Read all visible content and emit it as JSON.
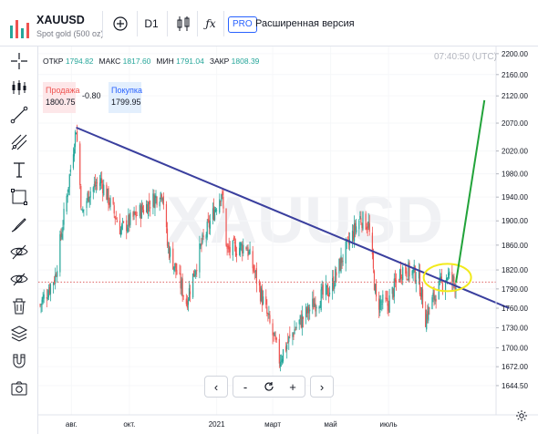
{
  "symbol": {
    "ticker": "XAUUSD",
    "description": "Spot gold (500 oz)",
    "watermark": "XAUUSD"
  },
  "toolbar": {
    "add_icon": "plus-circle-icon",
    "interval": "D1",
    "chart_type_icon": "candles-icon",
    "indicators_icon": "fx-icon",
    "pro_badge": "PRO",
    "extended_label": "Расширенная версия"
  },
  "left_tools": [
    "crosshair-icon",
    "candle-settings-icon",
    "trend-line-icon",
    "pitchfork-icon",
    "text-icon",
    "rectangle-icon",
    "brush-icon",
    "eye-off-icon",
    "magnet-icon",
    "trash-icon",
    "layers-icon",
    "magnet-u-icon",
    "screenshot-icon"
  ],
  "ohlc": {
    "open_label": "ОТКР",
    "open": "1794.82",
    "high_label": "МАКС",
    "high": "1817.60",
    "low_label": "МИН",
    "low": "1791.04",
    "close_label": "ЗАКР",
    "close": "1808.39"
  },
  "time": "07:40:50 (UTC)",
  "trade": {
    "sell_label": "Продажа",
    "sell_price": "1800.75",
    "spread": "-0.80",
    "buy_label": "Покупка",
    "buy_price": "1799.95"
  },
  "colors": {
    "up": "#26a69a",
    "down": "#ef5350",
    "trendline": "#3a3f9e",
    "projection": "#22a33a",
    "highlight_ellipse": "#f2ea1b",
    "hline": "#e06666"
  },
  "navigation": {
    "prev": "‹",
    "zoom_out": "-",
    "reset_icon": "reset-icon",
    "zoom_in": "+",
    "next": "›"
  },
  "chart_data": {
    "type": "candlestick",
    "title": "",
    "price_axis": {
      "ticks": [
        "2200.00",
        "2160.00",
        "2120.00",
        "2070.00",
        "2020.00",
        "1980.00",
        "1940.00",
        "1900.00",
        "1860.00",
        "1820.00",
        "1790.00",
        "1760.00",
        "1730.00",
        "1700.00",
        "1672.00",
        "1644.50"
      ],
      "ylim": [
        1630,
        2205
      ],
      "scale": "log"
    },
    "time_axis": {
      "ticks": [
        "авг.",
        "окт.",
        "2021",
        "март",
        "май",
        "июль"
      ]
    },
    "date_range": [
      "2020-06-29",
      "2021-09-10"
    ],
    "approx_close_path": [
      {
        "t": "2020-06-29",
        "p": 1765
      },
      {
        "t": "2020-07-15",
        "p": 1810
      },
      {
        "t": "2020-07-27",
        "p": 1940
      },
      {
        "t": "2020-08-06",
        "p": 2062
      },
      {
        "t": "2020-08-12",
        "p": 1910
      },
      {
        "t": "2020-08-20",
        "p": 1950
      },
      {
        "t": "2020-09-01",
        "p": 1968
      },
      {
        "t": "2020-09-22",
        "p": 1885
      },
      {
        "t": "2020-10-05",
        "p": 1905
      },
      {
        "t": "2020-11-05",
        "p": 1950
      },
      {
        "t": "2020-11-10",
        "p": 1860
      },
      {
        "t": "2020-11-30",
        "p": 1770
      },
      {
        "t": "2020-12-15",
        "p": 1855
      },
      {
        "t": "2021-01-06",
        "p": 1950
      },
      {
        "t": "2021-01-12",
        "p": 1850
      },
      {
        "t": "2021-02-01",
        "p": 1860
      },
      {
        "t": "2021-02-18",
        "p": 1775
      },
      {
        "t": "2021-03-08",
        "p": 1683
      },
      {
        "t": "2021-03-25",
        "p": 1730
      },
      {
        "t": "2021-04-15",
        "p": 1770
      },
      {
        "t": "2021-05-01",
        "p": 1790
      },
      {
        "t": "2021-05-15",
        "p": 1845
      },
      {
        "t": "2021-06-01",
        "p": 1905
      },
      {
        "t": "2021-06-10",
        "p": 1893
      },
      {
        "t": "2021-06-18",
        "p": 1770
      },
      {
        "t": "2021-06-30",
        "p": 1765
      },
      {
        "t": "2021-07-15",
        "p": 1822
      },
      {
        "t": "2021-08-01",
        "p": 1812
      },
      {
        "t": "2021-08-09",
        "p": 1745
      },
      {
        "t": "2021-08-20",
        "p": 1785
      },
      {
        "t": "2021-09-01",
        "p": 1812
      },
      {
        "t": "2021-09-10",
        "p": 1796
      }
    ],
    "horizontal_line": 1800.75,
    "trendline": {
      "from": {
        "t": "2020-08-06",
        "p": 2062
      },
      "to": {
        "t": "2021-11-05",
        "p": 1760
      }
    },
    "projection": {
      "from": {
        "t": "2021-09-10",
        "p": 1800
      },
      "to": {
        "t": "2021-10-10",
        "p": 2112
      }
    },
    "highlight": {
      "center": {
        "t": "2021-09-01",
        "p": 1808
      },
      "label": ""
    }
  }
}
